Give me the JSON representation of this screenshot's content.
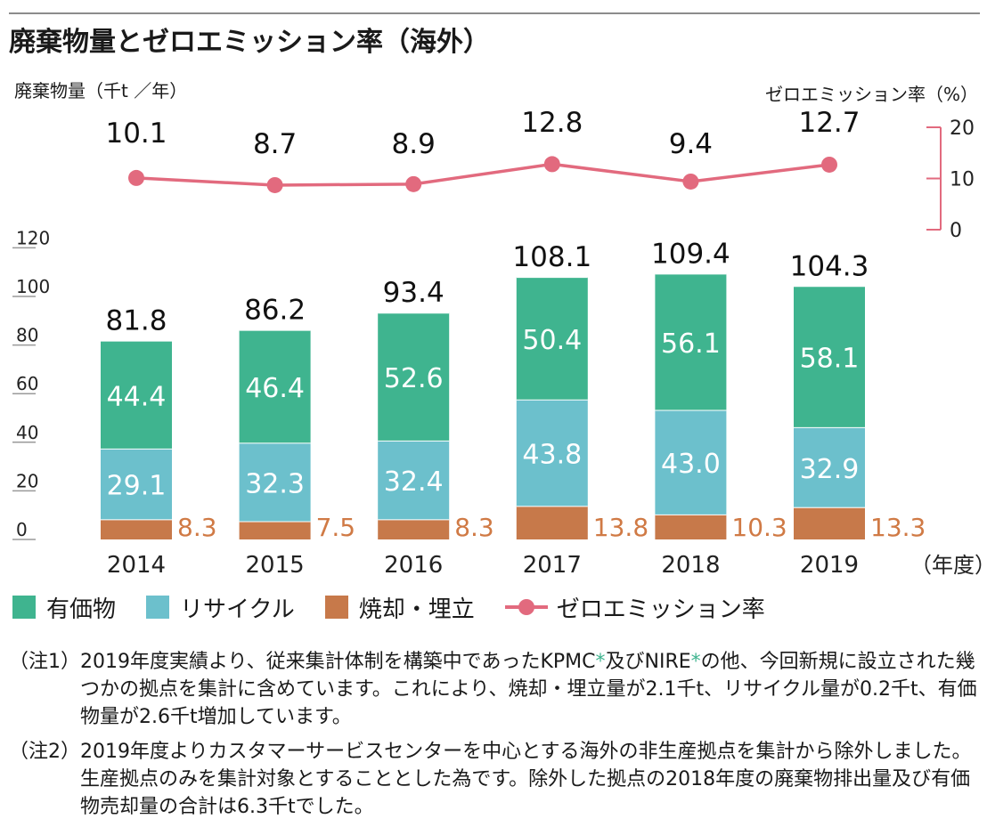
{
  "title": "廃棄物量とゼロエミッション率（海外）",
  "left_axis_label": "廃棄物量（千t ／年）",
  "right_axis_label": "ゼロエミッション率（%）",
  "x_unit": "（年度）",
  "colors": {
    "valuable": "#3fb48f",
    "recycle": "#6cc0cc",
    "incineration": "#c7794a",
    "zero_emission": "#e26a7e",
    "incineration_label": "#d07a45"
  },
  "legend": [
    {
      "key": "valuable",
      "label": "有価物"
    },
    {
      "key": "recycle",
      "label": "リサイクル"
    },
    {
      "key": "incineration",
      "label": "焼却・埋立"
    },
    {
      "key": "zero_emission",
      "label": "ゼロエミッション率"
    }
  ],
  "chart_data": {
    "type": "bar",
    "stacked": true,
    "categories": [
      "2014",
      "2015",
      "2016",
      "2017",
      "2018",
      "2019"
    ],
    "series": [
      {
        "name": "焼却・埋立",
        "key": "incineration",
        "values": [
          8.3,
          7.5,
          8.3,
          13.8,
          10.3,
          13.3
        ],
        "labels": [
          "8.3",
          "7.5",
          "8.3",
          "13.8",
          "10.3",
          "13.3"
        ]
      },
      {
        "name": "リサイクル",
        "key": "recycle",
        "values": [
          29.1,
          32.3,
          32.4,
          43.8,
          43.0,
          32.9
        ],
        "labels": [
          "29.1",
          "32.3",
          "32.4",
          "43.8",
          "43.0",
          "32.9"
        ]
      },
      {
        "name": "有価物",
        "key": "valuable",
        "values": [
          44.4,
          46.4,
          52.6,
          50.4,
          56.1,
          58.1
        ],
        "labels": [
          "44.4",
          "46.4",
          "52.6",
          "50.4",
          "56.1",
          "58.1"
        ]
      }
    ],
    "totals": [
      81.8,
      86.2,
      93.4,
      108.1,
      109.4,
      104.3
    ],
    "total_labels": [
      "81.8",
      "86.2",
      "93.4",
      "108.1",
      "109.4",
      "104.3"
    ],
    "y_ticks": [
      "0",
      "20",
      "40",
      "60",
      "80",
      "100",
      "120"
    ],
    "ylim": [
      0,
      120
    ],
    "line_series": {
      "name": "ゼロエミッション率",
      "values": [
        10.1,
        8.7,
        8.9,
        12.8,
        9.4,
        12.7
      ],
      "labels": [
        "10.1",
        "8.7",
        "8.9",
        "12.8",
        "9.4",
        "12.7"
      ],
      "y2_ticks": [
        "0",
        "10",
        "20"
      ],
      "y2lim": [
        0,
        20
      ]
    }
  },
  "notes": [
    {
      "label": "（注1）",
      "parts": [
        {
          "text": "2019年度実績より、従来集計体制を構築中であったKPMC"
        },
        {
          "text": "*",
          "accent": true
        },
        {
          "text": "及びNIRE"
        },
        {
          "text": "*",
          "accent": true
        },
        {
          "text": "の他、今回新規に設立された幾つかの拠点を集計に含めています。これにより、焼却・埋立量が2.1千t、リサイクル量が0.2千t、有価物量が2.6千t増加しています。"
        }
      ]
    },
    {
      "label": "（注2）",
      "parts": [
        {
          "text": "2019年度よりカスタマーサービスセンターを中心とする海外の非生産拠点を集計から除外しました。生産拠点のみを集計対象とすることとした為です。除外した拠点の2018年度の廃棄物排出量及び有価物売却量の合計は6.3千tでした。"
        }
      ]
    }
  ]
}
